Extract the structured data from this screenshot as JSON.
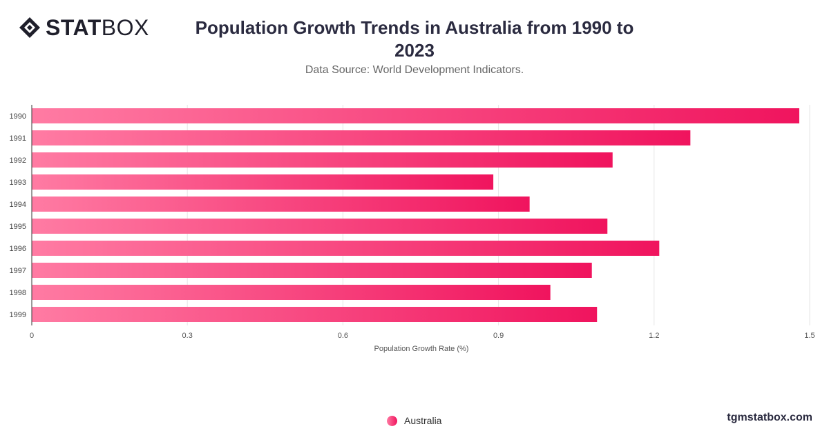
{
  "header": {
    "logo_bold": "STAT",
    "logo_light": "BOX",
    "title": "Population Growth Trends in Australia from 1990 to 2023",
    "subtitle": "Data Source: World Development Indicators."
  },
  "footer": {
    "credit": "tgmstatbox.com"
  },
  "colors": {
    "bar_start": "#ff7ba3",
    "bar_end": "#f0145e",
    "grid": "#e5e5e5",
    "axis": "#333333"
  },
  "chart_data": {
    "type": "bar",
    "orientation": "horizontal",
    "categories": [
      "1990",
      "1991",
      "1992",
      "1993",
      "1994",
      "1995",
      "1996",
      "1997",
      "1998",
      "1999"
    ],
    "series": [
      {
        "name": "Australia",
        "values": [
          1.48,
          1.27,
          1.12,
          0.89,
          0.96,
          1.11,
          1.21,
          1.08,
          1.0,
          1.09
        ]
      }
    ],
    "xlabel": "Population Growth Rate (%)",
    "ylabel": "",
    "xlim": [
      0,
      1.5
    ],
    "xticks": [
      "0",
      "0.3",
      "0.6",
      "0.9",
      "1.2",
      "1.5"
    ],
    "grid": true,
    "legend_position": "bottom"
  }
}
